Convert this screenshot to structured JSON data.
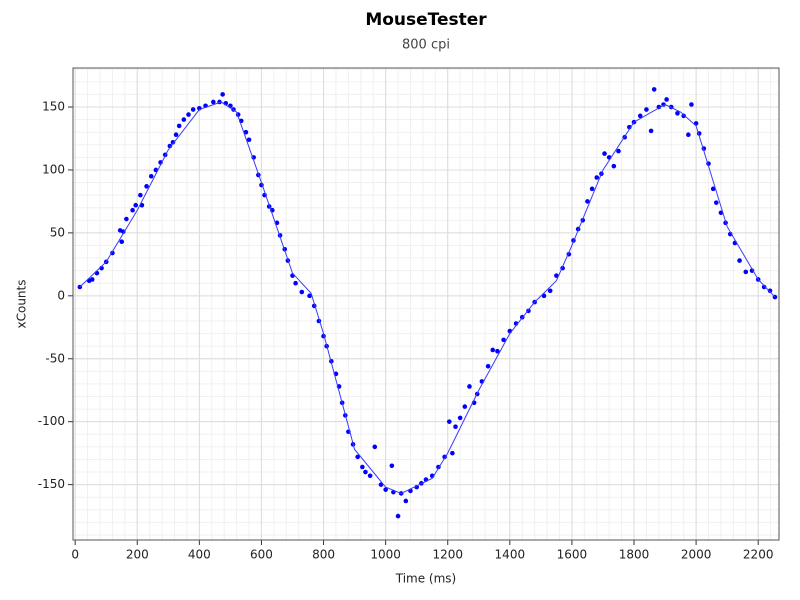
{
  "chart_data": {
    "type": "scatter",
    "title": "MouseTester",
    "subtitle": "800 cpi",
    "xlabel": "Time (ms)",
    "ylabel": "xCounts",
    "xlim": [
      -7,
      2267
    ],
    "ylim": [
      -194,
      181
    ],
    "xticks": [
      0,
      200,
      400,
      600,
      800,
      1000,
      1200,
      1400,
      1600,
      1800,
      2000,
      2200
    ],
    "yticks": [
      -150,
      -100,
      -50,
      0,
      50,
      100,
      150
    ],
    "grid": true,
    "series": [
      {
        "type": "scatter",
        "color": "#0000ff",
        "x": [
          15,
          45,
          55,
          70,
          85,
          100,
          120,
          145,
          150,
          155,
          165,
          185,
          195,
          210,
          215,
          230,
          245,
          260,
          275,
          290,
          305,
          315,
          325,
          335,
          350,
          365,
          380,
          400,
          420,
          445,
          465,
          475,
          485,
          500,
          510,
          525,
          535,
          550,
          560,
          575,
          590,
          600,
          610,
          625,
          635,
          650,
          660,
          675,
          685,
          700,
          710,
          730,
          755,
          770,
          785,
          800,
          810,
          825,
          840,
          850,
          860,
          870,
          880,
          895,
          910,
          925,
          935,
          950,
          965,
          985,
          1000,
          1020,
          1025,
          1040,
          1050,
          1065,
          1080,
          1100,
          1115,
          1130,
          1150,
          1170,
          1190,
          1205,
          1215,
          1225,
          1240,
          1255,
          1270,
          1285,
          1295,
          1310,
          1330,
          1345,
          1360,
          1380,
          1400,
          1420,
          1440,
          1460,
          1480,
          1510,
          1530,
          1550,
          1570,
          1590,
          1605,
          1620,
          1635,
          1650,
          1665,
          1680,
          1695,
          1705,
          1720,
          1735,
          1750,
          1770,
          1785,
          1800,
          1820,
          1840,
          1855,
          1865,
          1880,
          1895,
          1905,
          1920,
          1940,
          1960,
          1975,
          1985,
          2000,
          2010,
          2025,
          2040,
          2055,
          2065,
          2080,
          2095,
          2110,
          2125,
          2140,
          2160,
          2180,
          2200,
          2219,
          2238,
          2254
        ],
        "values": [
          7,
          12,
          13,
          18,
          22,
          27,
          34,
          52,
          43,
          51,
          61,
          68,
          72,
          80,
          72,
          87,
          95,
          100,
          106,
          112,
          119,
          122,
          128,
          135,
          140,
          144,
          148,
          149,
          151,
          154,
          154,
          160,
          153,
          151,
          148,
          144,
          139,
          130,
          124,
          110,
          96,
          88,
          80,
          71,
          68,
          58,
          48,
          37,
          28,
          16,
          10,
          3,
          0,
          -8,
          -20,
          -32,
          -40,
          -52,
          -62,
          -72,
          -85,
          -95,
          -108,
          -118,
          -128,
          -136,
          -140,
          -143,
          -120,
          -150,
          -154,
          -135,
          -156,
          -175,
          -157,
          -163,
          -155,
          -152,
          -149,
          -146,
          -143,
          -136,
          -128,
          -100,
          -125,
          -104,
          -97,
          -88,
          -72,
          -85,
          -78,
          -68,
          -56,
          -43,
          -44,
          -35,
          -28,
          -22,
          -17,
          -12,
          -5,
          0,
          4,
          16,
          22,
          33,
          44,
          53,
          60,
          75,
          85,
          94,
          97,
          113,
          110,
          103,
          115,
          126,
          134,
          138,
          143,
          148,
          131,
          164,
          150,
          152,
          156,
          150,
          145,
          143,
          128,
          152,
          137,
          129,
          117,
          105,
          85,
          74,
          66,
          58,
          49,
          42,
          28,
          19,
          20,
          13,
          7,
          4,
          -1
        ]
      },
      {
        "type": "line",
        "color": "#3a3aff",
        "x": [
          15,
          100,
          200,
          300,
          400,
          470,
          520,
          600,
          700,
          760,
          800,
          900,
          1000,
          1050,
          1150,
          1200,
          1300,
          1400,
          1480,
          1550,
          1600,
          1700,
          1800,
          1900,
          1950,
          2000,
          2100,
          2200,
          2254
        ],
        "values": [
          7,
          27,
          68,
          116,
          148,
          154,
          146,
          90,
          18,
          2,
          -30,
          -122,
          -152,
          -157,
          -145,
          -125,
          -75,
          -30,
          -5,
          12,
          40,
          100,
          138,
          152,
          146,
          135,
          55,
          13,
          -1
        ]
      }
    ]
  }
}
